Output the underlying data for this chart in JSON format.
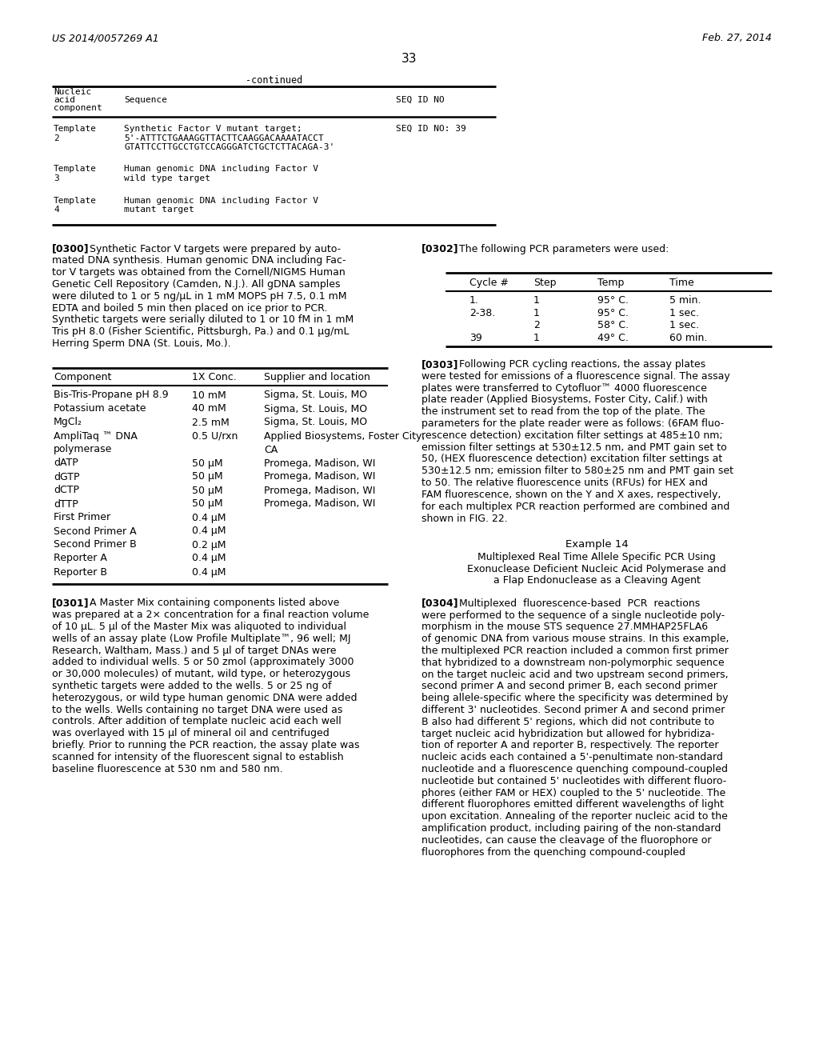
{
  "bg_color": "#ffffff",
  "header_left": "US 2014/0057269 A1",
  "header_right": "Feb. 27, 2014",
  "page_number": "33",
  "continued_label": "-continued",
  "t1_col1_header": [
    "Nucleic",
    "acid",
    "component"
  ],
  "t1_col2_header": "Sequence",
  "t1_col3_header": "SEQ ID NO",
  "t1_rows": [
    {
      "c1": [
        "Template",
        "2"
      ],
      "c2": [
        "Synthetic Factor V mutant target;",
        "5'-ATTTCTGAAAGGTTACTTCAAGGACAAAATACCT",
        "GTATTCCTTGCCTGTCCAGGGATCTGCTCTTACAGA-3'"
      ],
      "c3": "SEQ ID NO: 39"
    },
    {
      "c1": [
        "Template",
        "3"
      ],
      "c2": [
        "Human genomic DNA including Factor V",
        "wild type target"
      ],
      "c3": ""
    },
    {
      "c1": [
        "Template",
        "4"
      ],
      "c2": [
        "Human genomic DNA including Factor V",
        "mutant target"
      ],
      "c3": ""
    }
  ],
  "lines_0300": [
    "[0300]   Synthetic Factor V targets were prepared by auto-",
    "mated DNA synthesis. Human genomic DNA including Fac-",
    "tor V targets was obtained from the Cornell/NIGMS Human",
    "Genetic Cell Repository (Camden, N.J.). All gDNA samples",
    "were diluted to 1 or 5 ng/μL in 1 mM MOPS pH 7.5, 0.1 mM",
    "EDTA and boiled 5 min then placed on ice prior to PCR.",
    "Synthetic targets were serially diluted to 1 or 10 fM in 1 mM",
    "Tris pH 8.0 (Fisher Scientific, Pittsburgh, Pa.) and 0.1 μg/mL",
    "Herring Sperm DNA (St. Louis, Mo.)."
  ],
  "t2_col_headers": [
    "Component",
    "1X Conc.",
    "Supplier and location"
  ],
  "t2_rows": [
    [
      "Bis-Tris-Propane pH 8.9",
      "10 mM",
      "Sigma, St. Louis, MO"
    ],
    [
      "Potassium acetate",
      "40 mM",
      "Sigma, St. Louis, MO"
    ],
    [
      "MgCl₂",
      "2.5 mM",
      "Sigma, St. Louis, MO"
    ],
    [
      "AmpliTaq ™ DNA",
      "0.5 U/rxn",
      "Applied Biosystems, Foster City,"
    ],
    [
      "polymerase",
      "",
      "CA"
    ],
    [
      "dATP",
      "50 μM",
      "Promega, Madison, WI"
    ],
    [
      "dGTP",
      "50 μM",
      "Promega, Madison, WI"
    ],
    [
      "dCTP",
      "50 μM",
      "Promega, Madison, WI"
    ],
    [
      "dTTP",
      "50 μM",
      "Promega, Madison, WI"
    ],
    [
      "First Primer",
      "0.4 μM",
      ""
    ],
    [
      "Second Primer A",
      "0.4 μM",
      ""
    ],
    [
      "Second Primer B",
      "0.2 μM",
      ""
    ],
    [
      "Reporter A",
      "0.4 μM",
      ""
    ],
    [
      "Reporter B",
      "0.4 μM",
      ""
    ]
  ],
  "lines_0301": [
    "[0301]   A Master Mix containing components listed above",
    "was prepared at a 2× concentration for a final reaction volume",
    "of 10 μL. 5 μl of the Master Mix was aliquoted to individual",
    "wells of an assay plate (Low Profile Multiplate™, 96 well; MJ",
    "Research, Waltham, Mass.) and 5 μl of target DNAs were",
    "added to individual wells. 5 or 50 zmol (approximately 3000",
    "or 30,000 molecules) of mutant, wild type, or heterozygous",
    "synthetic targets were added to the wells. 5 or 25 ng of",
    "heterozygous, or wild type human genomic DNA were added",
    "to the wells. Wells containing no target DNA were used as",
    "controls. After addition of template nucleic acid each well",
    "was overlayed with 15 μl of mineral oil and centrifuged",
    "briefly. Prior to running the PCR reaction, the assay plate was",
    "scanned for intensity of the fluorescent signal to establish",
    "baseline fluorescence at 530 nm and 580 nm."
  ],
  "line_0302": "[0302]   The following PCR parameters were used:",
  "pcr_headers": [
    "Cycle #",
    "Step",
    "Temp",
    "Time"
  ],
  "pcr_rows": [
    [
      "1.",
      "1",
      "95° C.",
      "5 min."
    ],
    [
      "2-38.",
      "1",
      "95° C.",
      "1 sec."
    ],
    [
      "",
      "2",
      "58° C.",
      "1 sec."
    ],
    [
      "39",
      "1",
      "49° C.",
      "60 min."
    ]
  ],
  "lines_0303": [
    "[0303]   Following PCR cycling reactions, the assay plates",
    "were tested for emissions of a fluorescence signal. The assay",
    "plates were transferred to Cytofluor™ 4000 fluorescence",
    "plate reader (Applied Biosystems, Foster City, Calif.) with",
    "the instrument set to read from the top of the plate. The",
    "parameters for the plate reader were as follows: (6FAM fluo-",
    "rescence detection) excitation filter settings at 485±10 nm;",
    "emission filter settings at 530±12.5 nm, and PMT gain set to",
    "50, (HEX fluorescence detection) excitation filter settings at",
    "530±12.5 nm; emission filter to 580±25 nm and PMT gain set",
    "to 50. The relative fluorescence units (RFUs) for HEX and",
    "FAM fluorescence, shown on the Y and X axes, respectively,",
    "for each multiplex PCR reaction performed are combined and",
    "shown in FIG. 22."
  ],
  "example14_title": "Example 14",
  "example14_sub": [
    "Multiplexed Real Time Allele Specific PCR Using",
    "Exonuclease Deficient Nucleic Acid Polymerase and",
    "a Flap Endonuclease as a Cleaving Agent"
  ],
  "lines_0304": [
    "[0304]   Multiplexed  fluorescence-based  PCR  reactions",
    "were performed to the sequence of a single nucleotide poly-",
    "morphism in the mouse STS sequence 27.MMHAP25FLA6",
    "of genomic DNA from various mouse strains. In this example,",
    "the multiplexed PCR reaction included a common first primer",
    "that hybridized to a downstream non-polymorphic sequence",
    "on the target nucleic acid and two upstream second primers,",
    "second primer A and second primer B, each second primer",
    "being allele-specific where the specificity was determined by",
    "different 3' nucleotides. Second primer A and second primer",
    "B also had different 5' regions, which did not contribute to",
    "target nucleic acid hybridization but allowed for hybridiza-",
    "tion of reporter A and reporter B, respectively. The reporter",
    "nucleic acids each contained a 5'-penultimate non-standard",
    "nucleotide and a fluorescence quenching compound-coupled",
    "nucleotide but contained 5' nucleotides with different fluoro-",
    "phores (either FAM or HEX) coupled to the 5' nucleotide. The",
    "different fluorophores emitted different wavelengths of light",
    "upon excitation. Annealing of the reporter nucleic acid to the",
    "amplification product, including pairing of the non-standard",
    "nucleotides, can cause the cleavage of the fluorophore or",
    "fluorophores from the quenching compound-coupled"
  ]
}
